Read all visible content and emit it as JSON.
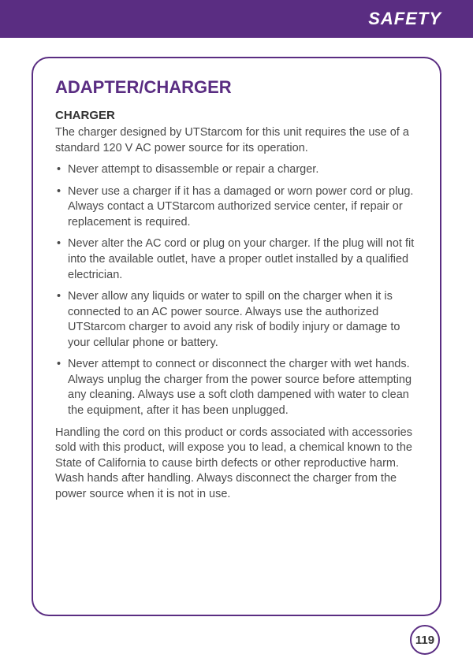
{
  "header": {
    "title": "SAFETY"
  },
  "content": {
    "section_title": "ADAPTER/CHARGER",
    "sub_title": "CHARGER",
    "intro": "The charger designed by UTStarcom for this unit requires the use of a standard 120 V AC power source for its operation.",
    "bullets": [
      "Never attempt to disassemble or repair a charger.",
      "Never use a charger if it has a damaged or worn power cord or plug. Always contact a UTStarcom authorized service center, if repair or replacement is required.",
      "Never alter the AC cord or plug on your charger.  If the plug will not fit into the available outlet, have a proper outlet installed by a qualified electrician.",
      "Never allow any liquids or water to spill on the charger when it is connected to an AC power source.  Always use the authorized UTStarcom charger to avoid any risk of bodily injury or damage to your cellular phone or battery.",
      "Never attempt to connect or disconnect the charger with wet hands. Always unplug the charger from the power source before attempting any cleaning. Always use a soft cloth dampened with water to clean the equipment, after it has been unplugged."
    ],
    "outro": "Handling the cord on this product or cords associated with accessories sold with this product, will expose you to lead, a chemical known to the State of California to cause birth defects or other reproductive harm. Wash hands after handling. Always disconnect the charger from the power source when it is not in use."
  },
  "page_number": "119",
  "colors": {
    "primary": "#5a2d82",
    "text": "#4a4a4a",
    "heading_text": "#333333",
    "white": "#ffffff"
  }
}
